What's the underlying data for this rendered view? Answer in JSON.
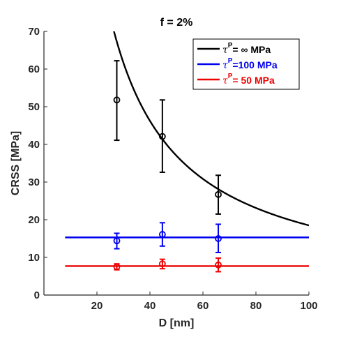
{
  "chart_data": {
    "type": "scatter",
    "title": "f = 2%",
    "xlabel": "D [nm]",
    "ylabel": "CRSS [MPa]",
    "xlim": [
      0,
      100
    ],
    "ylim": [
      0,
      70
    ],
    "xticks": [
      20,
      40,
      60,
      80,
      100
    ],
    "yticks": [
      0,
      10,
      20,
      30,
      40,
      50,
      60,
      70
    ],
    "grid": false,
    "legend_position": "top-right",
    "series": [
      {
        "name": "τ^P= ∞ MPa",
        "legend_symbol": "τ",
        "legend_sup": "P",
        "legend_rest": "=  ∞ MPa",
        "color": "#000000",
        "points": [
          {
            "x": 27.5,
            "y": 51.8,
            "err_low": 41.1,
            "err_high": 62.2
          },
          {
            "x": 44.7,
            "y": 42.1,
            "err_low": 32.6,
            "err_high": 51.8
          },
          {
            "x": 65.8,
            "y": 26.7,
            "err_low": 21.5,
            "err_high": 31.8
          }
        ],
        "fit": {
          "kind": "A/x",
          "A": 1850,
          "x_from": 26.2,
          "x_to": 100
        }
      },
      {
        "name": "τ^P=100 MPa",
        "legend_symbol": "τ",
        "legend_sup": "P",
        "legend_rest": "=100 MPa",
        "color": "#0000ee",
        "points": [
          {
            "x": 27.5,
            "y": 14.4,
            "err_low": 12.3,
            "err_high": 16.4
          },
          {
            "x": 44.7,
            "y": 16.1,
            "err_low": 13.0,
            "err_high": 19.2
          },
          {
            "x": 65.8,
            "y": 15.0,
            "err_low": 11.3,
            "err_high": 18.8
          }
        ],
        "fit": {
          "kind": "constant",
          "y": 15.3,
          "x_from": 8,
          "x_to": 100
        }
      },
      {
        "name": "τ^P= 50 MPa",
        "legend_symbol": "τ",
        "legend_sup": "P",
        "legend_rest": "=  50 MPa",
        "color": "#ee0000",
        "points": [
          {
            "x": 27.5,
            "y": 7.5,
            "err_low": 6.7,
            "err_high": 8.3
          },
          {
            "x": 44.7,
            "y": 8.3,
            "err_low": 7.0,
            "err_high": 9.5
          },
          {
            "x": 65.8,
            "y": 8.0,
            "err_low": 6.2,
            "err_high": 9.8
          }
        ],
        "fit": {
          "kind": "constant",
          "y": 7.7,
          "x_from": 8,
          "x_to": 100
        }
      }
    ]
  }
}
